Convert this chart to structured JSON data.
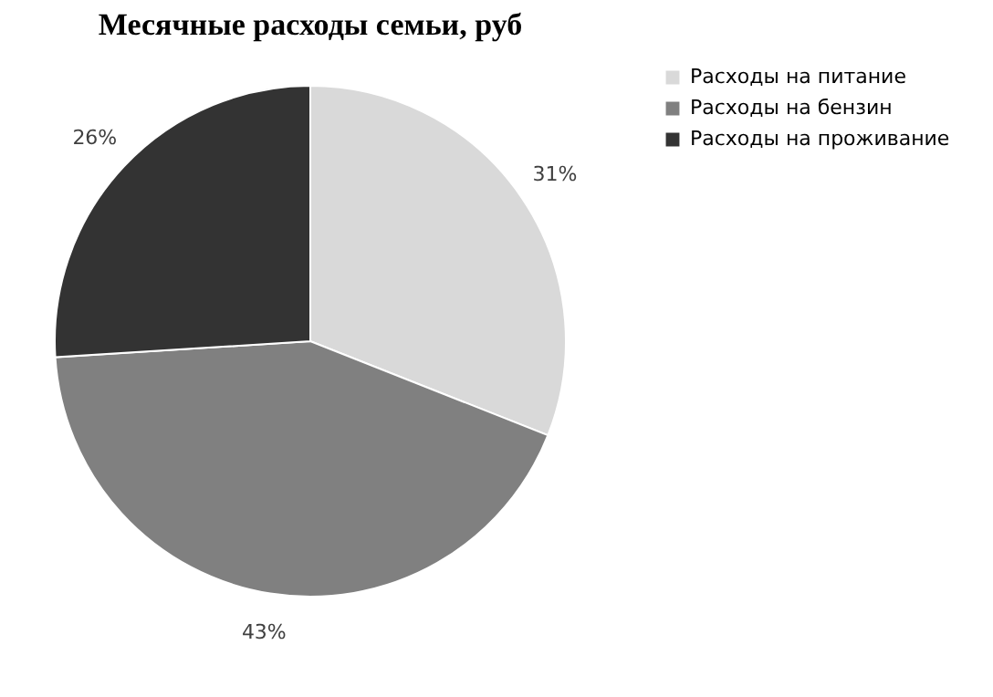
{
  "chart_data": {
    "type": "pie",
    "title": "Месячные расходы семьи, руб",
    "categories": [
      "Расходы на питание",
      "Расходы на бензин",
      "Расходы на проживание"
    ],
    "values": [
      31,
      43,
      26
    ],
    "colors": [
      "#d9d9d9",
      "#808080",
      "#333333"
    ],
    "value_labels": [
      "31%",
      "43%",
      "26%"
    ],
    "legend": "right"
  }
}
